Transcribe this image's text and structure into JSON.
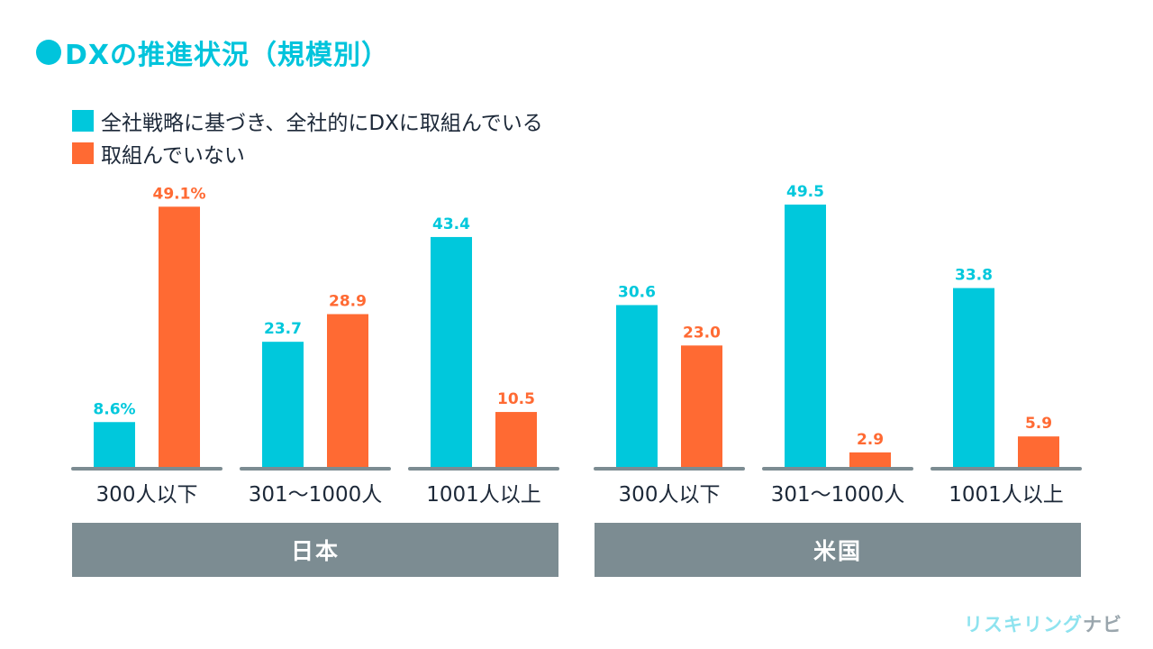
{
  "header": {
    "title": "DXの推進状況（規模別）"
  },
  "chart_data": {
    "type": "bar",
    "title": "DXの推進状況（規模別）",
    "xlabel": "",
    "ylabel": "",
    "ylim": [
      0,
      50
    ],
    "grid": false,
    "legend_position": "top-left",
    "series": [
      {
        "name": "全社戦略に基づき、全社的にDXに取組んでいる",
        "color": "#00c8dc"
      },
      {
        "name": "取組んでいない",
        "color": "#ff6a33"
      }
    ],
    "groups": [
      {
        "name": "日本",
        "categories": [
          "300人以下",
          "301〜1000人",
          "1001人以上"
        ],
        "values": [
          [
            8.6,
            23.7,
            43.4
          ],
          [
            49.1,
            28.9,
            10.5
          ]
        ],
        "labels": [
          [
            "8.6%",
            "23.7",
            "43.4"
          ],
          [
            "49.1%",
            "28.9",
            "10.5"
          ]
        ]
      },
      {
        "name": "米国",
        "categories": [
          "300人以下",
          "301〜1000人",
          "1001人以上"
        ],
        "values": [
          [
            30.6,
            49.5,
            33.8
          ],
          [
            23.0,
            2.9,
            5.9
          ]
        ],
        "labels": [
          [
            "30.6",
            "49.5",
            "33.8"
          ],
          [
            "23.0",
            "2.9",
            "5.9"
          ]
        ]
      }
    ]
  },
  "logo": {
    "part1": "リスキリング",
    "part2": "ナビ"
  },
  "colors": {
    "accent": "#00c4dc",
    "orange": "#ff6a33",
    "axis": "#7c8c92",
    "text": "#1c2838"
  }
}
